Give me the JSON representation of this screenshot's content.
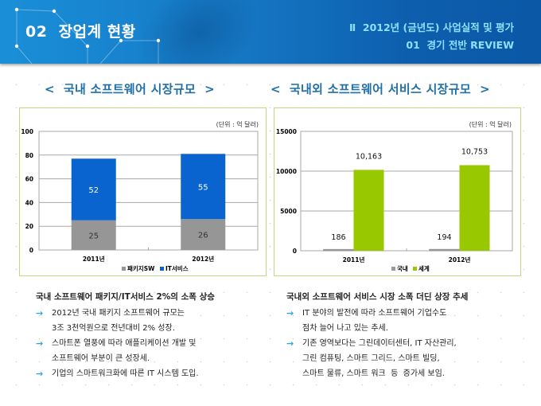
{
  "header": {
    "title": "02  장업계 현황",
    "subtitle_1": "Ⅱ  2012년 (금년도) 사업실적 및 평가",
    "subtitle_2": "01  경기 전반 REVIEW"
  },
  "sections": {
    "left_title": "<  국내 소프트웨어 시장규모  >",
    "right_title": "<  국내외 소프트웨어 서비스 시장규모  >"
  },
  "chart_data": [
    {
      "type": "bar",
      "stacked": true,
      "title": "국내 소프트웨어 시장규모",
      "unit_label": "(단위 : 억 달러)",
      "categories": [
        "2011년",
        "2012년"
      ],
      "series": [
        {
          "name": "패키지SW",
          "values": [
            25,
            26
          ],
          "color": "#969696"
        },
        {
          "name": "IT서비스",
          "values": [
            52,
            55
          ],
          "color": "#0a64d0"
        }
      ],
      "yticks": [
        0,
        20,
        40,
        60,
        80,
        100
      ],
      "ylim": [
        0,
        100
      ],
      "grid": true,
      "legend": "bottom"
    },
    {
      "type": "bar",
      "stacked": false,
      "title": "국내외 소프트웨어 서비스 시장규모",
      "unit_label": "(단위 : 억 달러)",
      "categories": [
        "2011년",
        "2012년"
      ],
      "series": [
        {
          "name": "국내",
          "values": [
            186,
            194
          ],
          "labels": [
            "186",
            "194"
          ],
          "color": "#9a9a9a"
        },
        {
          "name": "세계",
          "values": [
            10163,
            10753
          ],
          "labels": [
            "10,163",
            "10,753"
          ],
          "color": "#98c800"
        }
      ],
      "yticks": [
        0,
        5000,
        10000,
        15000
      ],
      "ylim": [
        0,
        15000
      ],
      "grid": true,
      "legend": "bottom"
    }
  ],
  "left_text": {
    "heading": "국내 소프트웨어 패키지/IT서비스 2%의 소폭 상승",
    "items": [
      {
        "lines": [
          "2012년 국내 패키지 소프트웨어 규모는",
          "3조 3천억원으로 전년대비 2% 성장."
        ]
      },
      {
        "lines": [
          "스마트폰 열풍에 따라 애플리케이션 개발 및",
          "소프트웨어 부분이 큰 성장세."
        ]
      },
      {
        "lines": [
          "기업의 스마트워크화에 따른 IT 시스템 도입."
        ]
      }
    ]
  },
  "right_text": {
    "heading": "국내외 소프트웨어 서비스 시장 소폭 더딘 상장 추세",
    "items": [
      {
        "lines": [
          "IT 분야의 발전에 따라 소프트웨어 기업수도",
          "점차 늘어 나고 있는 추세."
        ]
      },
      {
        "lines": [
          "기존 영역보다는 그린데이터센터, IT 자산관리,",
          "그린 컴퓨팅, 스마트 그리드, 스마트 빌딩,",
          "스마트 물류, 스마트 워크  등  증가세 보임."
        ]
      }
    ]
  },
  "icons": {
    "bullet": "→"
  }
}
